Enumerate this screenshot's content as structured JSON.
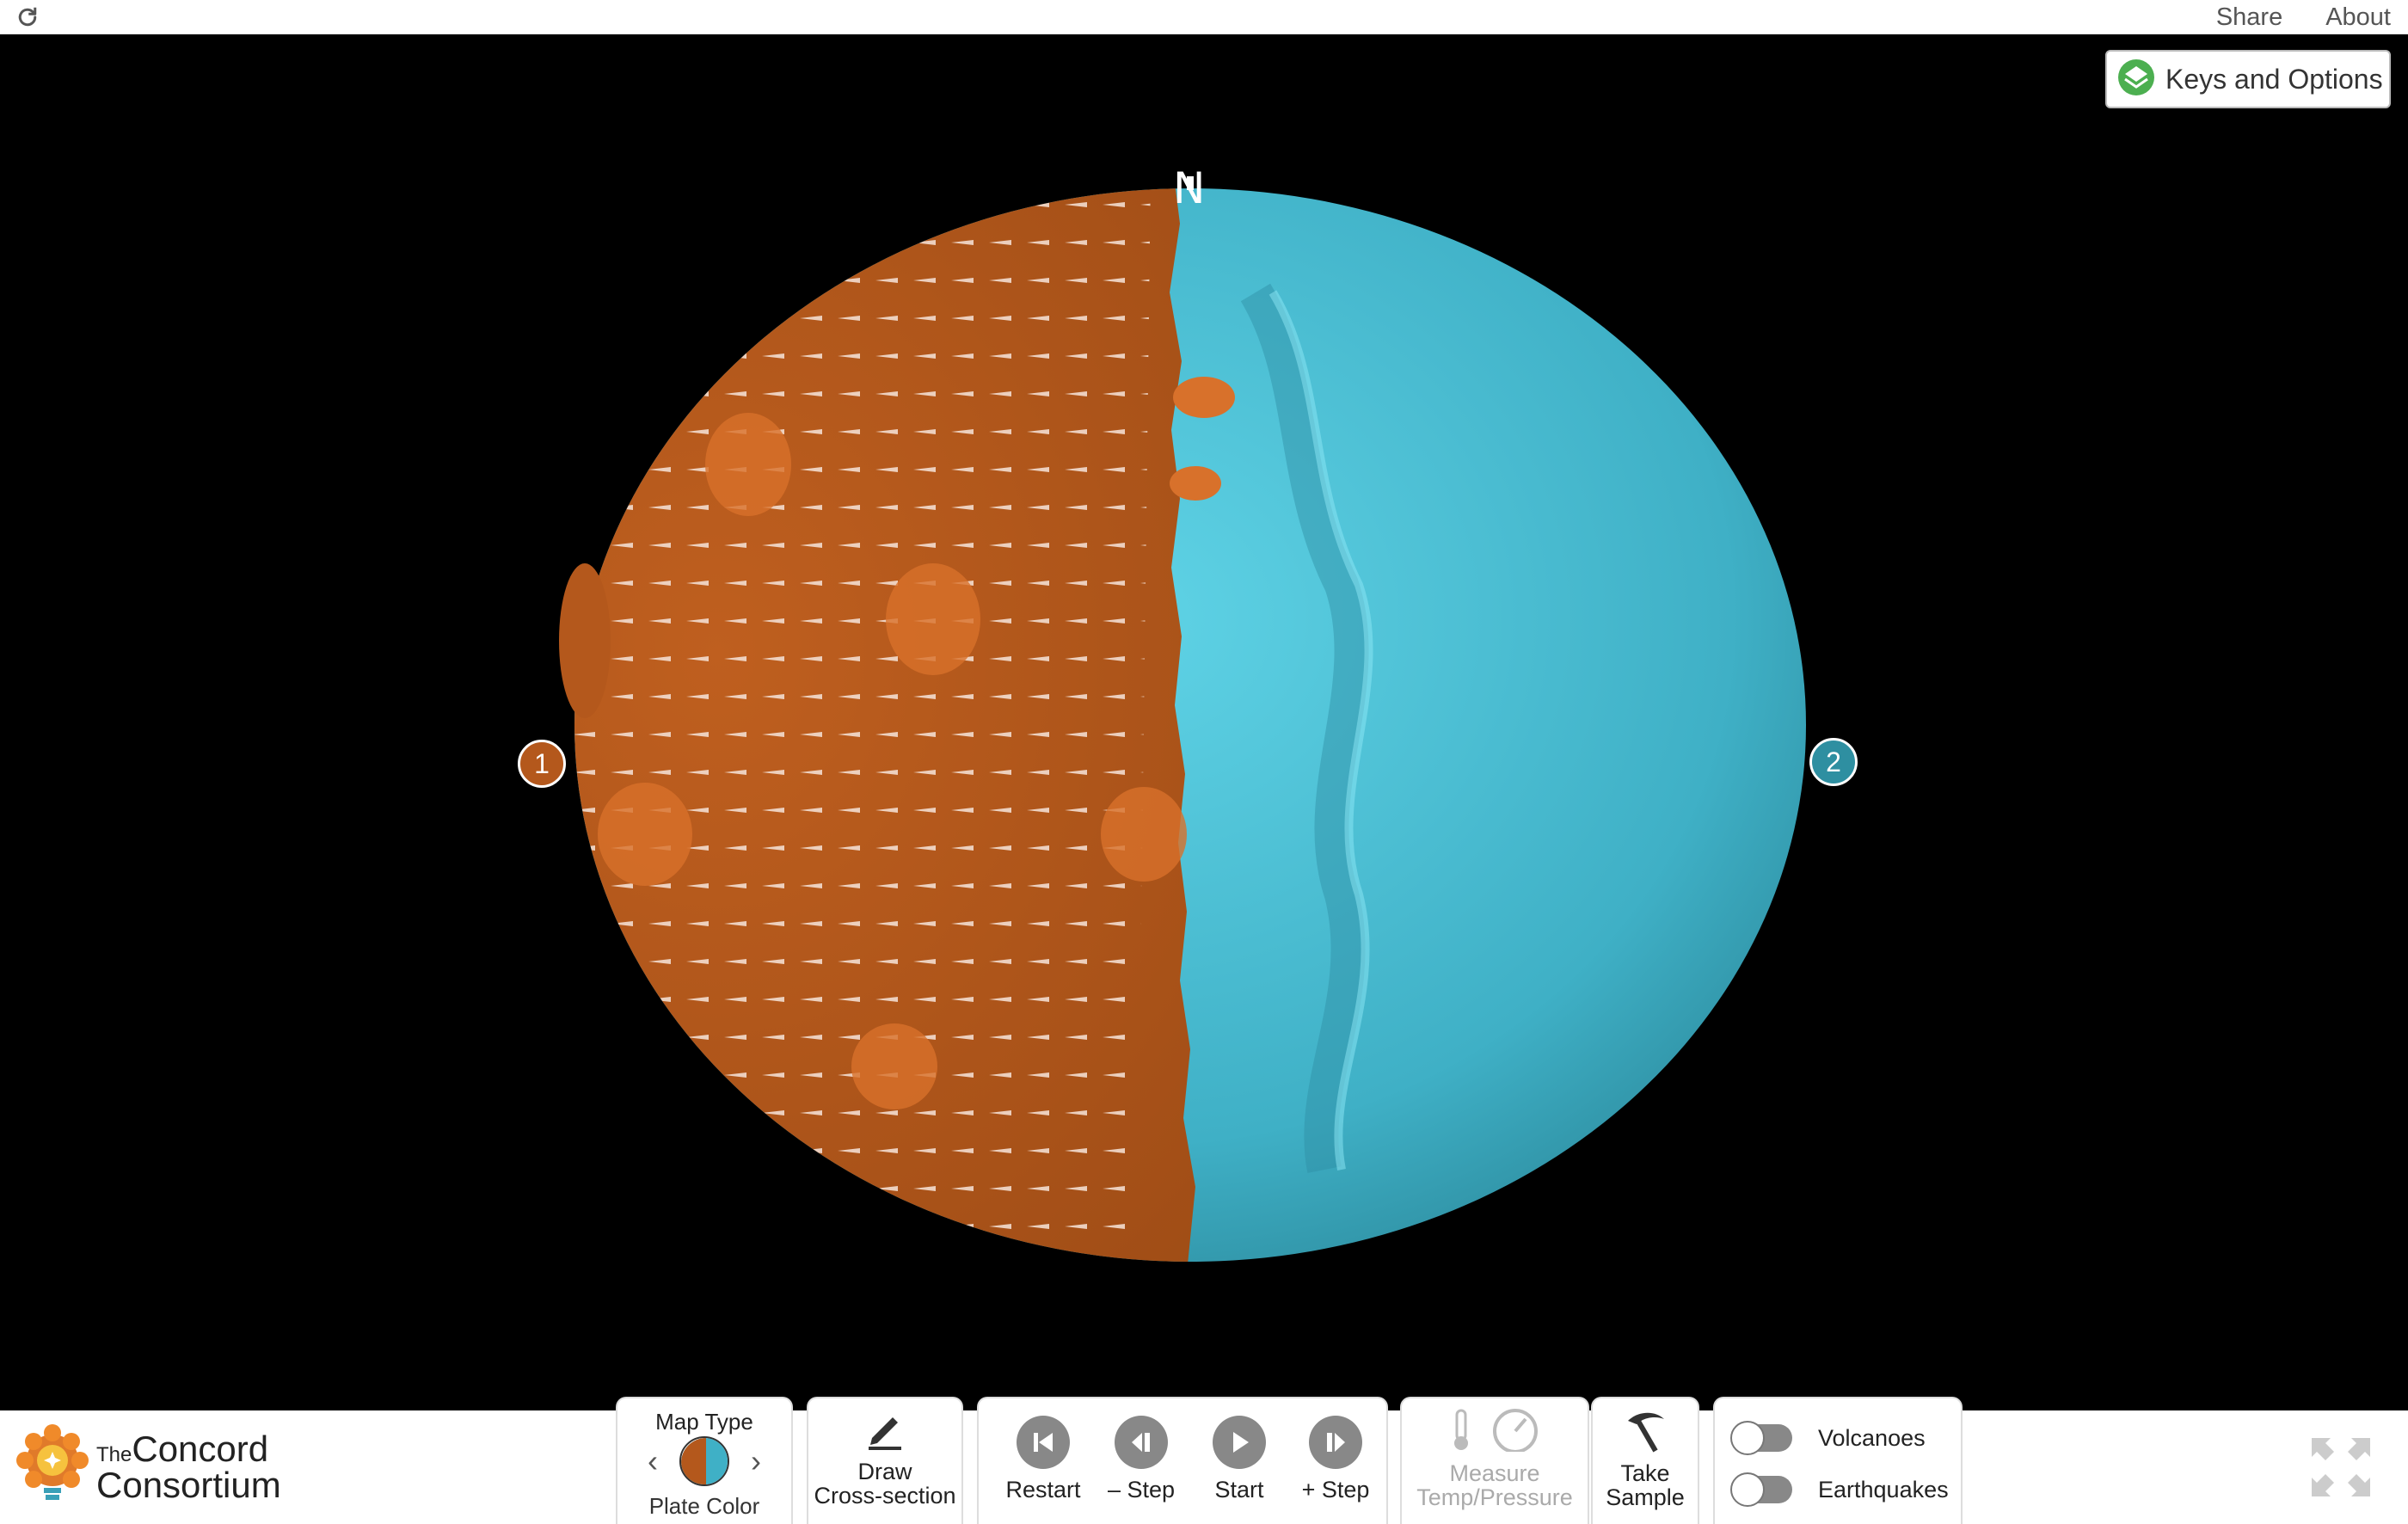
{
  "topbar": {
    "reload_icon": "reload-icon",
    "links": [
      "Share",
      "About"
    ]
  },
  "keys_button": {
    "label": "Keys and Options",
    "icon": "layers-icon",
    "icon_color": "#4caf50"
  },
  "planet": {
    "north_label": "N",
    "plates": [
      {
        "number": "1",
        "color": "#b4581c"
      },
      {
        "number": "2",
        "color": "#2e8fa1"
      }
    ],
    "colors": {
      "plate1": "#b4581c",
      "plate2": "#52c0d6",
      "space": "#000000"
    }
  },
  "logo": {
    "the": "The",
    "line1": "Concord",
    "line2": "Consortium"
  },
  "map_type": {
    "title": "Map Type",
    "value": "Plate Color"
  },
  "draw": {
    "line1": "Draw",
    "line2": "Cross-section"
  },
  "sim": {
    "restart": "Restart",
    "step_back": "– Step",
    "start": "Start",
    "step_forward": "+ Step"
  },
  "measure": {
    "line1": "Measure",
    "line2": "Temp/Pressure"
  },
  "sample": {
    "line1": "Take",
    "line2": "Sample"
  },
  "toggles": {
    "volcanoes": "Volcanoes",
    "earthquakes": "Earthquakes"
  }
}
